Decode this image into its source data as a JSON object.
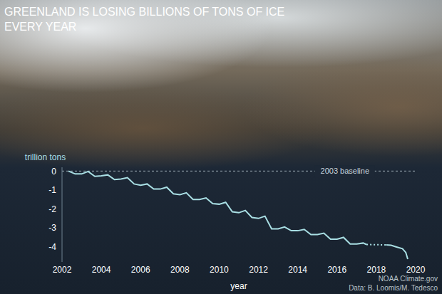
{
  "chart_data": {
    "type": "line",
    "title": "GREENLAND IS LOSING BILLIONS OF TONS OF ICE EVERY YEAR",
    "x_label": "year",
    "y_label": "trillion tons",
    "x": [
      2002.33,
      2002.67,
      2003,
      2003.33,
      2003.67,
      2004,
      2004.33,
      2004.67,
      2005,
      2005.33,
      2005.67,
      2006,
      2006.33,
      2006.67,
      2007,
      2007.33,
      2007.67,
      2008,
      2008.33,
      2008.67,
      2009,
      2009.33,
      2009.67,
      2010,
      2010.33,
      2010.67,
      2011,
      2011.33,
      2011.67,
      2012,
      2012.33,
      2012.67,
      2013,
      2013.33,
      2013.67,
      2014,
      2014.33,
      2014.67,
      2015,
      2015.33,
      2015.67,
      2016,
      2016.33,
      2016.67,
      2017,
      2017.33,
      2017.5,
      2018,
      2018.5,
      2018.75,
      2019,
      2019.33,
      2019.5,
      2019.6
    ],
    "series": [
      {
        "color": "#a9dfe4",
        "line_style": "solid",
        "values": [
          0,
          -0.15,
          -0.15,
          -0.02,
          -0.28,
          -0.25,
          -0.2,
          -0.45,
          -0.42,
          -0.35,
          -0.68,
          -0.75,
          -0.68,
          -0.95,
          -0.95,
          -0.85,
          -1.2,
          -1.25,
          -1.15,
          -1.5,
          -1.5,
          -1.42,
          -1.72,
          -1.75,
          -1.65,
          -2.15,
          -2.2,
          -2.08,
          -2.45,
          -2.5,
          -2.38,
          -3.05,
          -3.05,
          -2.95,
          -3.15,
          -3.15,
          -3.08,
          -3.35,
          -3.35,
          -3.28,
          -3.6,
          -3.6,
          -3.5,
          -3.85,
          -3.85,
          -3.8,
          -3.88,
          null,
          -3.9,
          -3.92,
          -4,
          -4.1,
          -4.3,
          -4.65
        ]
      },
      {
        "color": "#a9dfe4",
        "line_style": "dotted",
        "values": [
          null,
          null,
          null,
          null,
          null,
          null,
          null,
          null,
          null,
          null,
          null,
          null,
          null,
          null,
          null,
          null,
          null,
          null,
          null,
          null,
          null,
          null,
          null,
          null,
          null,
          null,
          null,
          null,
          null,
          null,
          null,
          null,
          null,
          null,
          null,
          null,
          null,
          null,
          null,
          null,
          null,
          null,
          null,
          null,
          null,
          null,
          -3.88,
          null,
          -3.9,
          null,
          null,
          null,
          null,
          null
        ]
      }
    ],
    "xlim": [
      2002,
      2020
    ],
    "xticks": [
      2002,
      2004,
      2006,
      2008,
      2010,
      2012,
      2014,
      2016,
      2018,
      2020
    ],
    "ylim": [
      -4.8,
      0.2
    ],
    "yticks": [
      -4,
      -3,
      -2,
      -1,
      0
    ],
    "grid": false,
    "annotations": [
      {
        "text": "2003 baseline",
        "y": 0
      },
      {
        "text": "NOAA Climate.gov"
      },
      {
        "text": "Data: B. Loomis/M. Tedesco"
      }
    ]
  }
}
